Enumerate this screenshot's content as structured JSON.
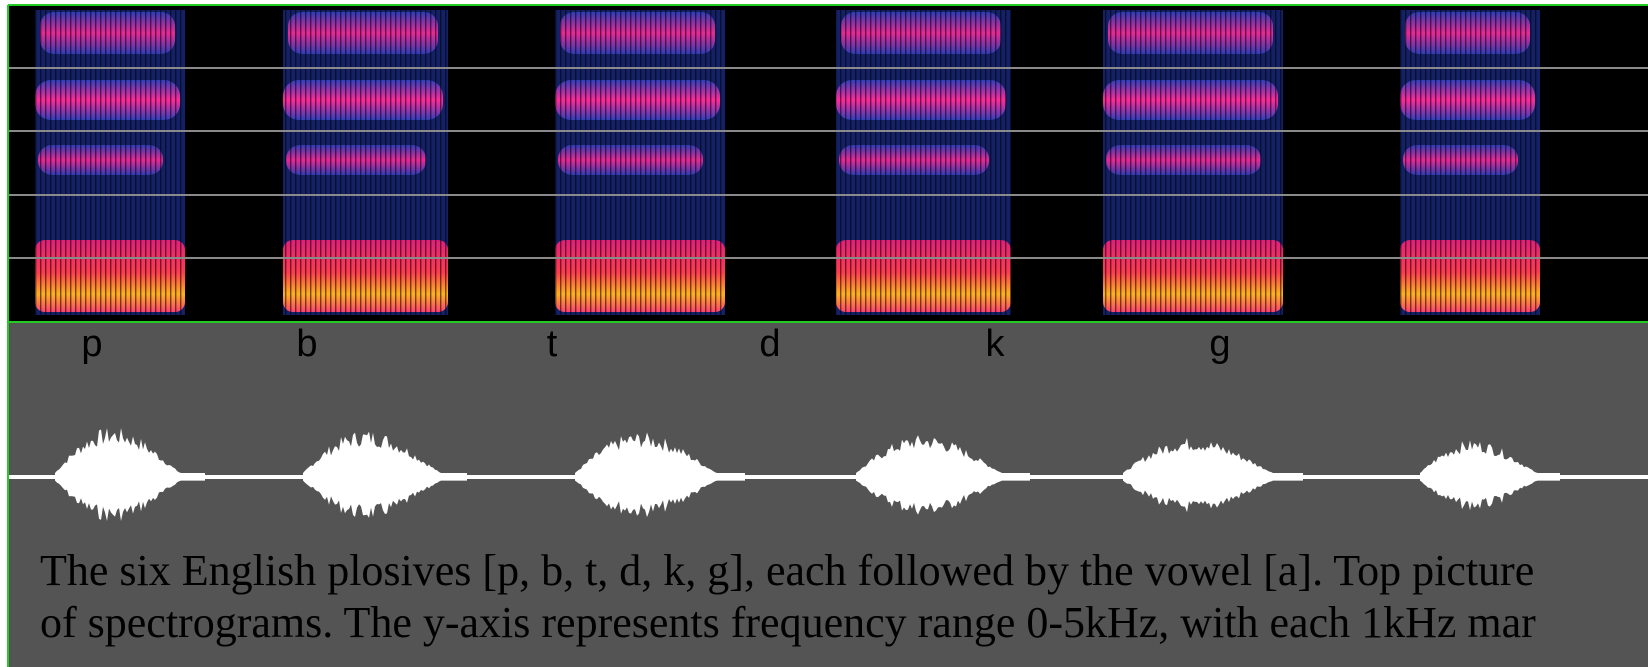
{
  "labels": [
    "p",
    "b",
    "t",
    "d",
    "k",
    "g"
  ],
  "caption": [
    "The six English plosives [p, b, t, d, k, g], each followed by the vowel [a]. Top picture",
    "of spectrograms. The y-axis represents frequency range 0-5kHz, with each 1kHz mar"
  ]
}
